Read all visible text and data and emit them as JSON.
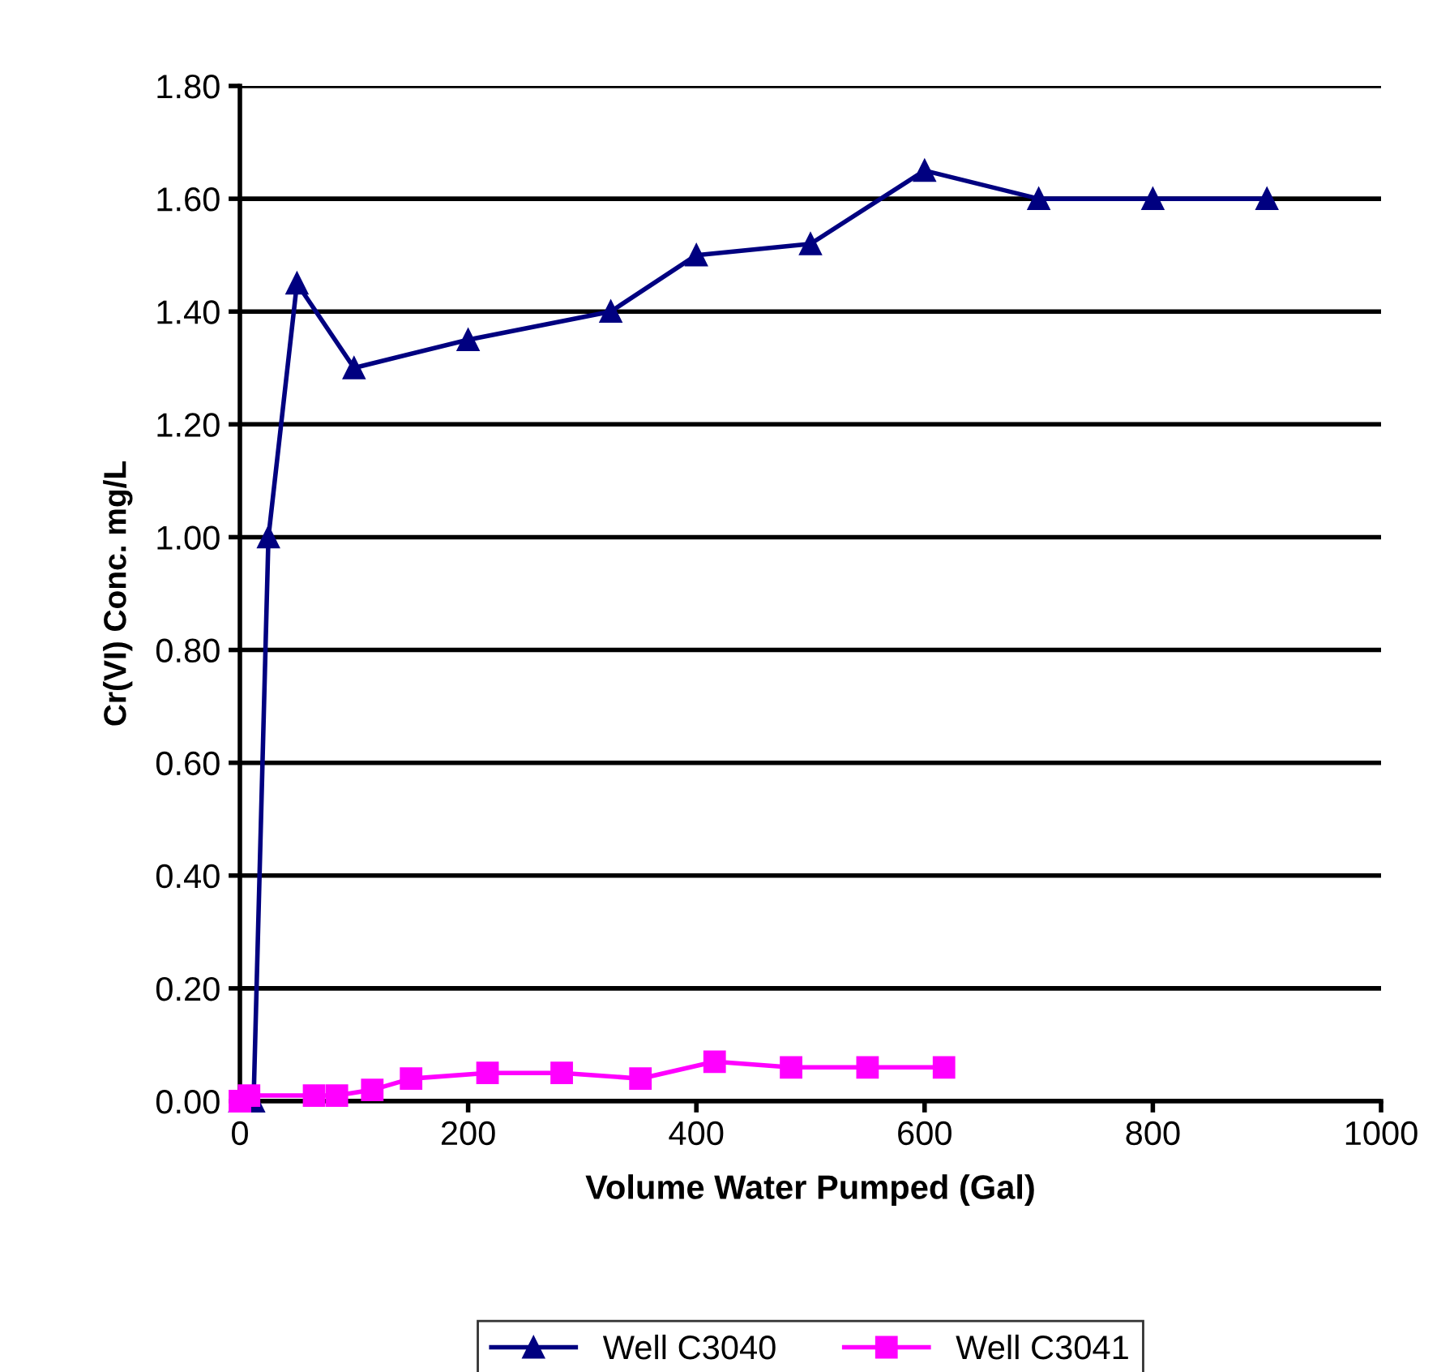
{
  "chart_data": {
    "type": "line",
    "xlabel": "Volume Water Pumped (Gal)",
    "ylabel": "Cr(VI) Conc. mg/L",
    "series": [
      {
        "name": "Well C3040",
        "color": "#000080",
        "marker": "triangle",
        "x": [
          0,
          12,
          25,
          50,
          100,
          200,
          325,
          400,
          500,
          600,
          700,
          800,
          900
        ],
        "values": [
          0,
          0,
          1.0,
          1.45,
          1.3,
          1.35,
          1.4,
          1.5,
          1.52,
          1.65,
          1.6,
          1.6,
          1.6
        ]
      },
      {
        "name": "Well C3041",
        "color": "#ff00ff",
        "marker": "square",
        "x": [
          0,
          8,
          65,
          85,
          116,
          150,
          217,
          282,
          351,
          416,
          483,
          550,
          617
        ],
        "values": [
          0,
          0.01,
          0.01,
          0.01,
          0.02,
          0.04,
          0.05,
          0.05,
          0.04,
          0.07,
          0.06,
          0.06,
          0.06
        ]
      }
    ],
    "xlim": [
      0,
      1000
    ],
    "xticks": [
      0,
      200,
      400,
      600,
      800,
      1000
    ],
    "ylim": [
      0,
      1.8
    ],
    "yticks": [
      {
        "value": 0,
        "label": "0.00"
      },
      {
        "value": 0.2,
        "label": "0.20"
      },
      {
        "value": 0.4,
        "label": "0.40"
      },
      {
        "value": 0.6,
        "label": "0.60"
      },
      {
        "value": 0.8,
        "label": "0.80"
      },
      {
        "value": 1.0,
        "label": "1.00"
      },
      {
        "value": 1.2,
        "label": "1.20"
      },
      {
        "value": 1.4,
        "label": "1.40"
      },
      {
        "value": 1.6,
        "label": "1.60"
      },
      {
        "value": 1.8,
        "label": "1.80"
      }
    ],
    "grid": "y",
    "legend": "bottom"
  }
}
